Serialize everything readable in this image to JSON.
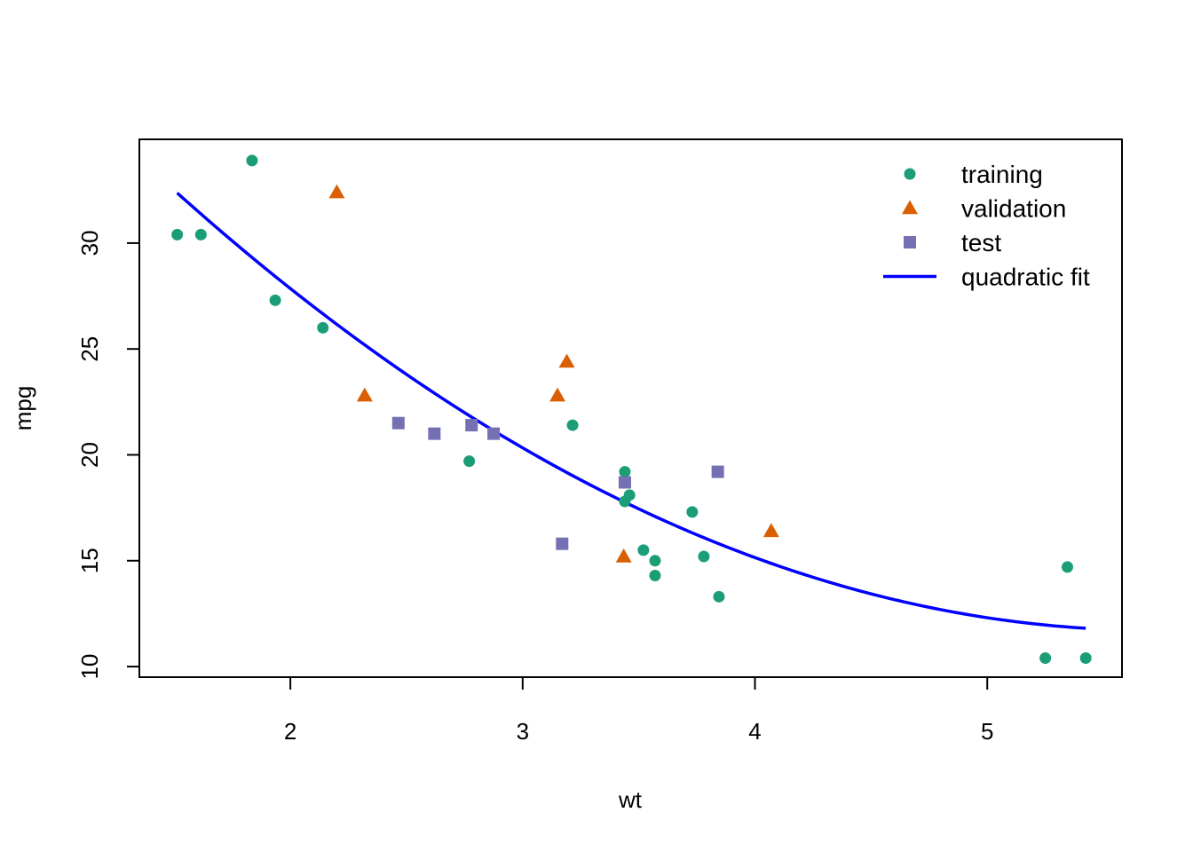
{
  "chart_data": {
    "type": "scatter",
    "title": "",
    "xlabel": "wt",
    "ylabel": "mpg",
    "xlim": [
      1.35,
      5.58
    ],
    "ylim": [
      9.5,
      34.9
    ],
    "xticks": [
      2,
      3,
      4,
      5
    ],
    "yticks": [
      10,
      15,
      20,
      25,
      30
    ],
    "grid": false,
    "legend_position": "top-right",
    "series": [
      {
        "name": "training",
        "marker": "circle",
        "color": "#1B9E77",
        "points": [
          [
            1.513,
            30.4
          ],
          [
            1.615,
            30.4
          ],
          [
            1.835,
            33.9
          ],
          [
            1.935,
            27.3
          ],
          [
            2.14,
            26.0
          ],
          [
            2.77,
            19.7
          ],
          [
            3.215,
            21.4
          ],
          [
            3.44,
            19.2
          ],
          [
            3.44,
            17.8
          ],
          [
            3.46,
            18.1
          ],
          [
            3.52,
            15.5
          ],
          [
            3.57,
            15.0
          ],
          [
            3.57,
            14.3
          ],
          [
            3.73,
            17.3
          ],
          [
            3.78,
            15.2
          ],
          [
            3.845,
            13.3
          ],
          [
            5.25,
            10.4
          ],
          [
            5.345,
            14.7
          ],
          [
            5.424,
            10.4
          ]
        ]
      },
      {
        "name": "validation",
        "marker": "triangle",
        "color": "#D95F02",
        "points": [
          [
            2.2,
            32.4
          ],
          [
            2.32,
            22.8
          ],
          [
            3.15,
            22.8
          ],
          [
            3.19,
            24.4
          ],
          [
            3.435,
            15.2
          ],
          [
            4.07,
            16.4
          ]
        ]
      },
      {
        "name": "test",
        "marker": "square",
        "color": "#7570B3",
        "points": [
          [
            2.465,
            21.5
          ],
          [
            2.62,
            21.0
          ],
          [
            2.78,
            21.4
          ],
          [
            2.875,
            21.0
          ],
          [
            3.17,
            15.8
          ],
          [
            3.44,
            18.7
          ],
          [
            3.84,
            19.2
          ]
        ]
      },
      {
        "name": "quadratic fit",
        "marker": "line",
        "color": "#0000FF",
        "coefficients": {
          "a": 49.9308,
          "b": -13.3803,
          "c": 1.1711
        },
        "x_range": [
          1.513,
          5.424
        ]
      }
    ]
  }
}
